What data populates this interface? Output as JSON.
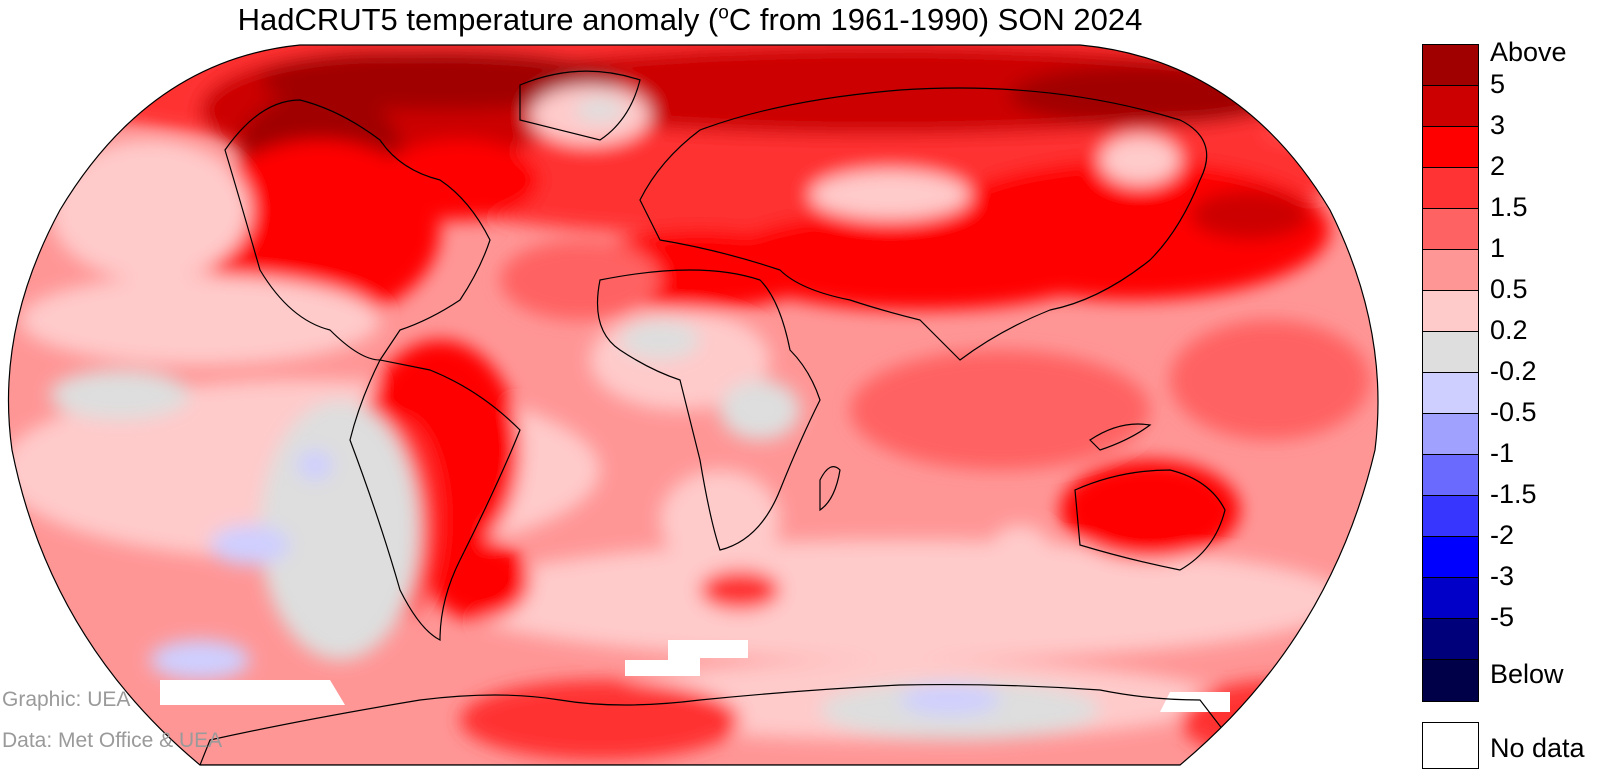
{
  "title_prefix": "HadCRUT5 temperature anomaly (",
  "title_degree": "o",
  "title_suffix": "C from 1961-1990) SON 2024",
  "credits": {
    "graphic": "Graphic: UEA",
    "data": "Data: Met Office & UEA"
  },
  "legend": {
    "colors": [
      "#a00000",
      "#cc0000",
      "#ff0000",
      "#ff3333",
      "#ff6262",
      "#ff9696",
      "#ffcaca",
      "#dedede",
      "#cfcfff",
      "#a0a0ff",
      "#6a6aff",
      "#3636ff",
      "#0000ff",
      "#0000c8",
      "#00007a",
      "#000048"
    ],
    "labels": [
      "Above",
      "5",
      "3",
      "2",
      "1.5",
      "1",
      "0.5",
      "0.2",
      "-0.2",
      "-0.5",
      "-1",
      "-1.5",
      "-2",
      "-3",
      "-5",
      "Below"
    ],
    "no_data_label": "No data"
  },
  "map": {
    "projection": "Robinson",
    "field": "temperature anomaly",
    "colors": {
      "land_outline": "#000000",
      "frame": "#000000",
      "no_data": "#ffffff"
    }
  }
}
